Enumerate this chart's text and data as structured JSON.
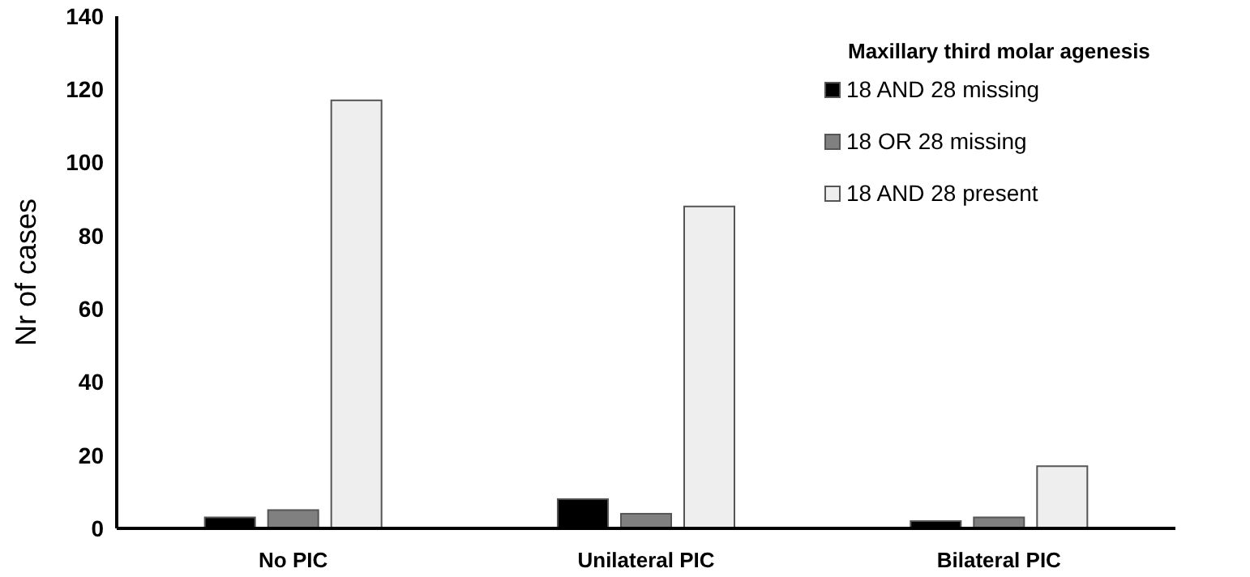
{
  "chart_data": {
    "type": "bar",
    "ylabel": "Nr of cases",
    "legend_title": "Maxillary third molar agenesis",
    "legend": "top right",
    "categories": [
      "No PIC",
      "Unilateral PIC",
      "Bilateral PIC"
    ],
    "series": [
      {
        "name": "18 AND 28 missing",
        "color": "#000000",
        "values": [
          3,
          8,
          2
        ]
      },
      {
        "name": "18 OR 28 missing",
        "color": "#808080",
        "values": [
          5,
          4,
          3
        ]
      },
      {
        "name": "18 AND 28 present",
        "color": "#eeeeee",
        "values": [
          117,
          88,
          17
        ]
      }
    ],
    "ylim": [
      0,
      140
    ],
    "yticks": [
      0,
      20,
      40,
      60,
      80,
      100,
      120,
      140
    ],
    "grid": false
  }
}
